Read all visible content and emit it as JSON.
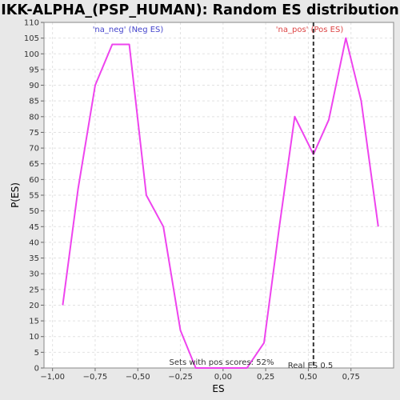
{
  "chart_data": {
    "type": "line",
    "title": "IKK-ALPHA_(PSP_HUMAN): Random ES distribution",
    "xlabel": "ES",
    "ylabel": "P(ES)",
    "xlim": [
      -1.05,
      1.0
    ],
    "ylim": [
      0,
      110
    ],
    "x_ticks": [
      -1.0,
      -0.75,
      -0.5,
      -0.25,
      0.0,
      0.25,
      0.5,
      0.75
    ],
    "x_tick_labels": [
      "−1,00",
      "−0,75",
      "−0,50",
      "−0,25",
      "0,00",
      "0,25",
      "0,50",
      "0,75"
    ],
    "y_ticks": [
      0,
      5,
      10,
      15,
      20,
      25,
      30,
      35,
      40,
      45,
      50,
      55,
      60,
      65,
      70,
      75,
      80,
      85,
      90,
      95,
      100,
      105,
      110
    ],
    "grid": true,
    "series": [
      {
        "color": "#ee44ee",
        "x": [
          -0.94,
          -0.85,
          -0.75,
          -0.65,
          -0.55,
          -0.45,
          -0.35,
          -0.25,
          -0.16,
          -0.06,
          0.04,
          0.14,
          0.24,
          0.33,
          0.42,
          0.53,
          0.62,
          0.72,
          0.81,
          0.91
        ],
        "y": [
          20,
          57,
          90,
          103,
          103,
          55,
          45,
          12,
          0,
          0,
          0,
          0,
          8,
          45,
          80,
          68,
          79,
          105,
          85,
          45
        ]
      }
    ],
    "vline": {
      "x": 0.53,
      "label": "Real ES 0.5",
      "style": "dashed",
      "color": "#333333"
    },
    "annotations": [
      {
        "text": "'na_neg' (Neg ES)",
        "color": "#4444cc"
      },
      {
        "text": "'na_pos' (Pos ES)",
        "color": "#dd4444"
      },
      {
        "text": "Sets with pos scores: 52%",
        "color": "#333333"
      }
    ]
  }
}
